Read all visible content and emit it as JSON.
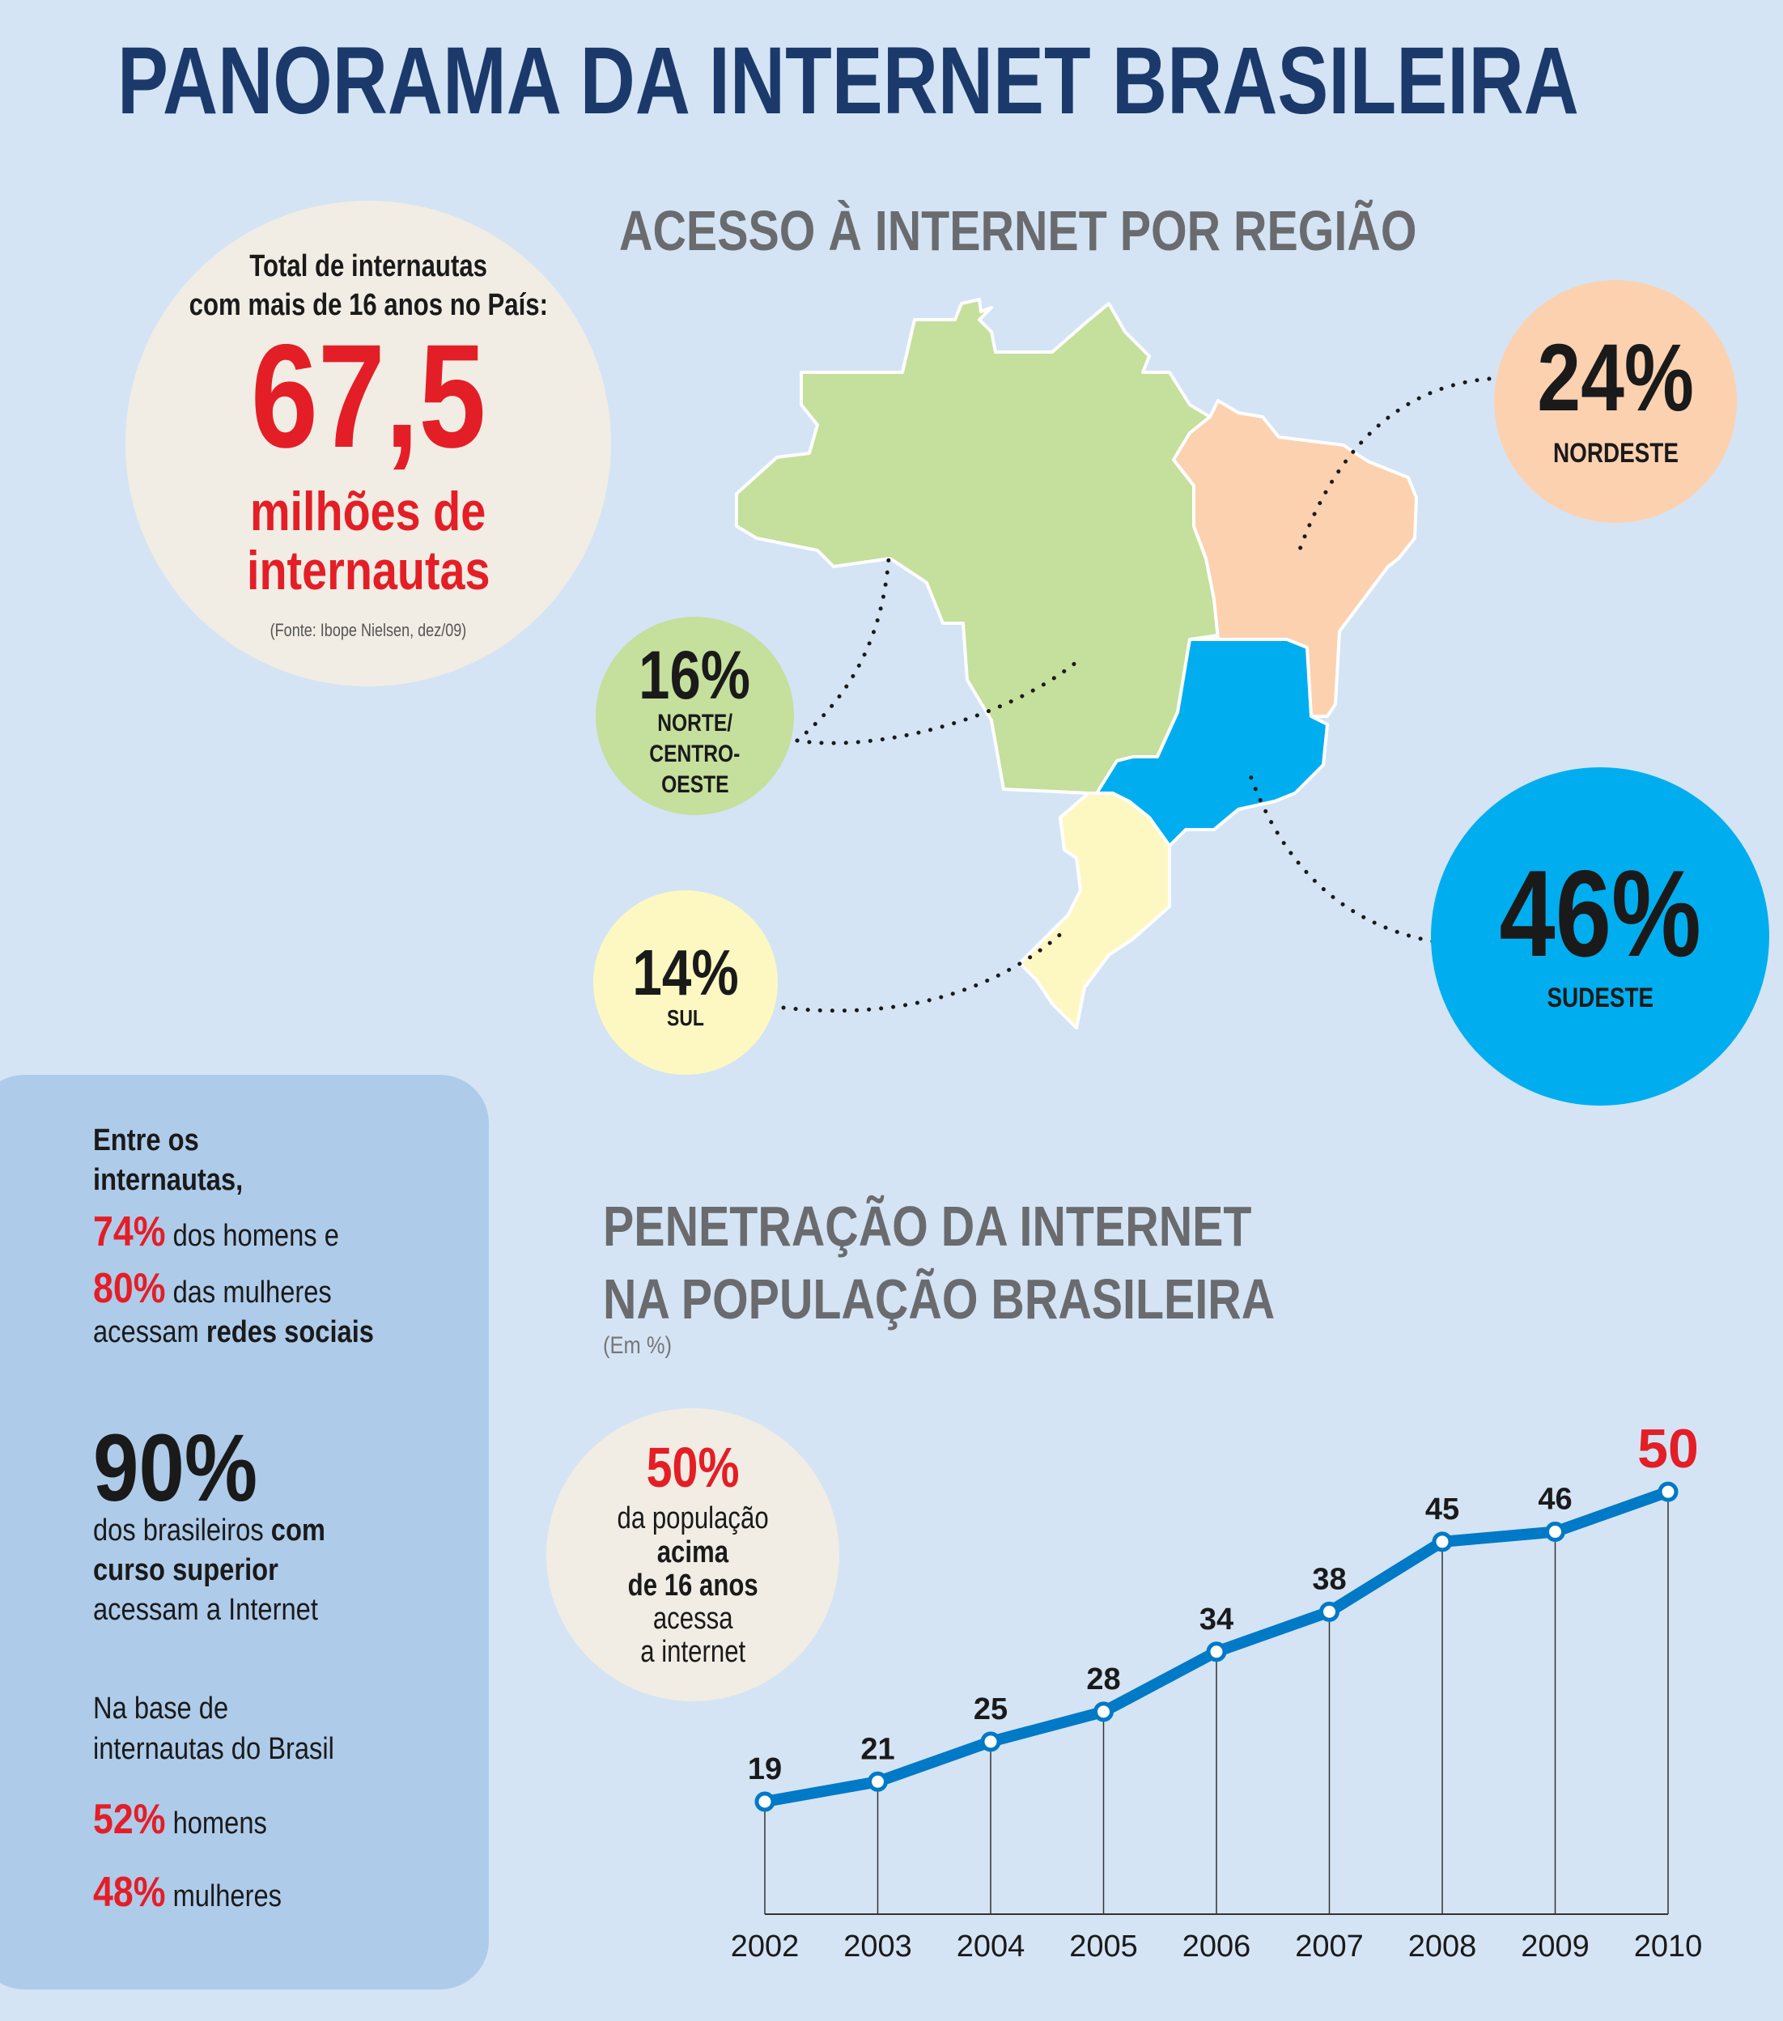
{
  "title": "PANORAMA DA INTERNET BRASILEIRA",
  "total": {
    "intro_line1": "Total de internautas",
    "intro_line2": "com mais de 16 anos no País:",
    "value": "67,5",
    "unit_line1": "milhões de",
    "unit_line2": "internautas",
    "source": "(Fonte: Ibope Nielsen, dez/09)"
  },
  "regions": {
    "title": "ACESSO À INTERNET POR REGIÃO",
    "items": [
      {
        "id": "nordeste",
        "value": "24%",
        "label": "NORDESTE",
        "color": "#fcd1b0"
      },
      {
        "id": "sudeste",
        "value": "46%",
        "label": "SUDESTE",
        "color": "#00aeef"
      },
      {
        "id": "norte",
        "value": "16%",
        "label_lines": [
          "NORTE/",
          "CENTRO-",
          "OESTE"
        ],
        "color": "#c5df9c"
      },
      {
        "id": "sul",
        "value": "14%",
        "label": "SUL",
        "color": "#fdf8c2"
      }
    ]
  },
  "side": {
    "intro_line1": "Entre os",
    "intro_line2": "internautas,",
    "men_pct": "74%",
    "men_text": " dos homens e",
    "women_pct": "80%",
    "women_text": " das mulheres",
    "social_pre": "acessam ",
    "social_bold": "redes sociais",
    "higher_pct": "90%",
    "higher_line1_pre": "dos brasileiros ",
    "higher_line1_bold": "com",
    "higher_line2_bold": "curso superior",
    "higher_line3": "acessam a Internet",
    "base_line1": "Na base de",
    "base_line2": "internautas do Brasil",
    "base_men_pct": "52%",
    "base_men_text": " homens",
    "base_women_pct": "48%",
    "base_women_text": " mulheres"
  },
  "penetration": {
    "title_line1": "PENETRAÇÃO DA INTERNET",
    "title_line2": "NA POPULAÇÃO BRASILEIRA",
    "subtitle": "(Em %)",
    "callout_pct": "50%",
    "callout_line1": "da população",
    "callout_line2": "acima",
    "callout_line3": "de 16 anos",
    "callout_line4": "acessa",
    "callout_line5": "a internet"
  },
  "chart_data": {
    "type": "line",
    "title": "PENETRAÇÃO DA INTERNET NA POPULAÇÃO BRASILEIRA",
    "ylabel": "(Em %)",
    "xlabel": "",
    "categories": [
      "2002",
      "2003",
      "2004",
      "2005",
      "2006",
      "2007",
      "2008",
      "2009",
      "2010"
    ],
    "values": [
      19,
      21,
      25,
      28,
      34,
      38,
      45,
      46,
      50
    ],
    "ylim": [
      10,
      50
    ],
    "grid": false,
    "line_color": "#0079c6",
    "highlight_color": "#e41e26"
  }
}
